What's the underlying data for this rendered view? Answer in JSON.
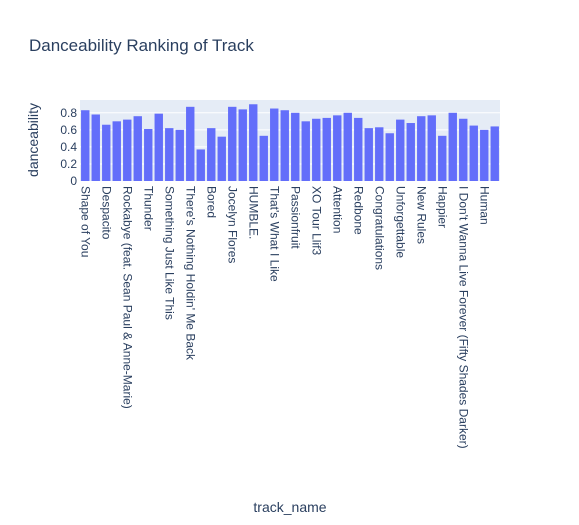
{
  "chart_data": {
    "type": "bar",
    "title": "Danceability Ranking of Track",
    "xlabel": "track_name",
    "ylabel": "danceability",
    "ylim": [
      0,
      0.95
    ],
    "yticks": [
      0,
      0.2,
      0.4,
      0.6,
      0.8
    ],
    "grid": true,
    "colors": {
      "bar": "#636efa",
      "plot_bg": "#e5ecf6",
      "text": "#2a3f5f",
      "grid": "#ffffff"
    },
    "categories": [
      "Shape of You",
      "",
      "Despacito",
      "",
      "Rockabye (feat. Sean Paul & Anne-Marie)",
      "",
      "Thunder",
      "",
      "Something Just Like This",
      "",
      "There's Nothing Holdin' Me Back",
      "",
      "Bored",
      "",
      "Jocelyn Flores",
      "",
      "HUMBLE.",
      "",
      "That's What I Like",
      "",
      "Passionfruit",
      "",
      "XO Tour Llif3",
      "",
      "Attention",
      "",
      "Redbone",
      "",
      "Congratulations",
      "",
      "Unforgettable",
      "",
      "New Rules",
      "",
      "Happier",
      "",
      "I Don't Wanna Live Forever (Fifty Shades Darker)",
      "",
      "Human",
      ""
    ],
    "values": [
      0.83,
      0.78,
      0.66,
      0.7,
      0.72,
      0.76,
      0.61,
      0.79,
      0.62,
      0.6,
      0.87,
      0.37,
      0.62,
      0.52,
      0.87,
      0.84,
      0.9,
      0.53,
      0.85,
      0.83,
      0.8,
      0.7,
      0.73,
      0.74,
      0.77,
      0.8,
      0.74,
      0.62,
      0.63,
      0.56,
      0.72,
      0.68,
      0.76,
      0.77,
      0.53,
      0.8,
      0.73,
      0.65,
      0.6,
      0.64
    ]
  }
}
